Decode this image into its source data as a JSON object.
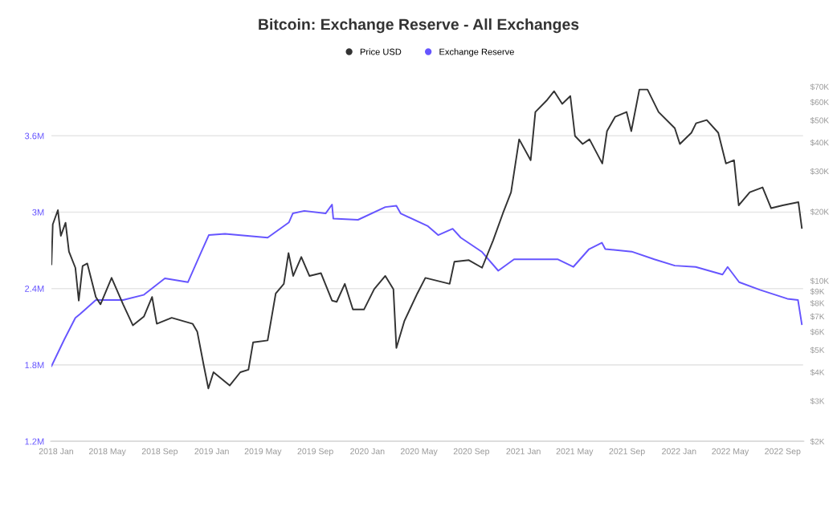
{
  "chart_data": {
    "type": "line",
    "title": "Bitcoin: Exchange Reserve - All Exchanges",
    "legend": "top",
    "grid": "y",
    "log": "y2",
    "line_style": "solid",
    "marker": "none",
    "xlim": [
      "2017-12-20",
      "2022-10-20"
    ],
    "xticks": [
      {
        "value": "2018-01-01",
        "label": "2018 Jan"
      },
      {
        "value": "2018-05-01",
        "label": "2018 May"
      },
      {
        "value": "2018-09-01",
        "label": "2018 Sep"
      },
      {
        "value": "2019-01-01",
        "label": "2019 Jan"
      },
      {
        "value": "2019-05-01",
        "label": "2019 May"
      },
      {
        "value": "2019-09-01",
        "label": "2019 Sep"
      },
      {
        "value": "2020-01-01",
        "label": "2020 Jan"
      },
      {
        "value": "2020-05-01",
        "label": "2020 May"
      },
      {
        "value": "2020-09-01",
        "label": "2020 Sep"
      },
      {
        "value": "2021-01-01",
        "label": "2021 Jan"
      },
      {
        "value": "2021-05-01",
        "label": "2021 May"
      },
      {
        "value": "2021-09-01",
        "label": "2021 Sep"
      },
      {
        "value": "2022-01-01",
        "label": "2022 Jan"
      },
      {
        "value": "2022-05-01",
        "label": "2022 May"
      },
      {
        "value": "2022-09-01",
        "label": "2022 Sep"
      }
    ],
    "ylim": [
      1200000,
      4100000
    ],
    "yticks": [
      {
        "value": 1200000,
        "label": "1.2M"
      },
      {
        "value": 1800000,
        "label": "1.8M"
      },
      {
        "value": 2400000,
        "label": "2.4M"
      },
      {
        "value": 3000000,
        "label": "3M"
      },
      {
        "value": 3600000,
        "label": "3.6M"
      }
    ],
    "y2lim": [
      2000,
      81000
    ],
    "y2ticks": [
      {
        "value": 2000,
        "label": "$2K"
      },
      {
        "value": 3000,
        "label": "$3K"
      },
      {
        "value": 4000,
        "label": "$4K"
      },
      {
        "value": 5000,
        "label": "$5K"
      },
      {
        "value": 6000,
        "label": "$6K"
      },
      {
        "value": 7000,
        "label": "$7K"
      },
      {
        "value": 8000,
        "label": "$8K"
      },
      {
        "value": 9000,
        "label": "$9K"
      },
      {
        "value": 10000,
        "label": "$10K"
      },
      {
        "value": 20000,
        "label": "$20K"
      },
      {
        "value": 30000,
        "label": "$30K"
      },
      {
        "value": 40000,
        "label": "$40K"
      },
      {
        "value": 50000,
        "label": "$50K"
      },
      {
        "value": 60000,
        "label": "$60K"
      },
      {
        "value": 70000,
        "label": "$70K"
      }
    ],
    "series": [
      {
        "name": "Price USD",
        "color": "#333333",
        "axis": "y2",
        "x": [
          "2017-12-21",
          "2017-12-24",
          "2018-01-05",
          "2018-01-12",
          "2018-01-23",
          "2018-01-31",
          "2018-02-15",
          "2018-02-23",
          "2018-03-04",
          "2018-03-15",
          "2018-04-04",
          "2018-04-15",
          "2018-05-11",
          "2018-06-07",
          "2018-06-30",
          "2018-07-26",
          "2018-08-14",
          "2018-08-25",
          "2018-09-29",
          "2018-11-17",
          "2018-11-28",
          "2018-12-13",
          "2018-12-24",
          "2019-01-05",
          "2019-02-12",
          "2019-03-09",
          "2019-03-28",
          "2019-04-08",
          "2019-05-12",
          "2019-05-31",
          "2019-06-19",
          "2019-06-30",
          "2019-07-11",
          "2019-07-30",
          "2019-08-18",
          "2019-09-14",
          "2019-10-10",
          "2019-10-21",
          "2019-11-09",
          "2019-11-28",
          "2019-12-24",
          "2020-01-17",
          "2020-02-12",
          "2020-03-02",
          "2020-03-09",
          "2020-03-28",
          "2020-04-27",
          "2020-05-16",
          "2020-07-12",
          "2020-07-23",
          "2020-08-26",
          "2020-09-26",
          "2020-10-22",
          "2020-11-14",
          "2020-12-03",
          "2020-12-22",
          "2021-01-18",
          "2021-01-29",
          "2021-02-24",
          "2021-03-14",
          "2021-04-02",
          "2021-04-21",
          "2021-05-02",
          "2021-05-20",
          "2021-06-05",
          "2021-07-05",
          "2021-07-16",
          "2021-08-04",
          "2021-08-31",
          "2021-09-11",
          "2021-09-30",
          "2021-10-19",
          "2021-11-14",
          "2021-12-22",
          "2022-01-03",
          "2022-01-30",
          "2022-02-10",
          "2022-03-07",
          "2022-04-03",
          "2022-04-21",
          "2022-05-10",
          "2022-05-21",
          "2022-06-16",
          "2022-07-16",
          "2022-08-05",
          "2022-09-01",
          "2022-10-08",
          "2022-10-16"
        ],
        "values": [
          11800,
          17600,
          20300,
          15700,
          17900,
          13400,
          11400,
          8200,
          11600,
          11900,
          8500,
          7900,
          10300,
          7900,
          6400,
          7000,
          8500,
          6500,
          6900,
          6500,
          6000,
          4300,
          3400,
          4000,
          3500,
          4000,
          4100,
          5400,
          5500,
          8800,
          9700,
          13200,
          10500,
          12700,
          10500,
          10800,
          8200,
          8100,
          9700,
          7500,
          7500,
          9200,
          10500,
          9200,
          5100,
          6700,
          8800,
          10300,
          9700,
          12100,
          12300,
          11400,
          15000,
          19700,
          24300,
          41300,
          33500,
          54300,
          60800,
          66900,
          58900,
          63700,
          42700,
          39400,
          41300,
          32400,
          44800,
          51700,
          54300,
          44800,
          68000,
          68000,
          54300,
          46200,
          39400,
          44100,
          48500,
          50100,
          44100,
          32400,
          33500,
          21300,
          24300,
          25500,
          20700,
          21300,
          22000,
          17000
        ]
      },
      {
        "name": "Exchange Reserve",
        "color": "#6655ff",
        "axis": "y",
        "x": [
          "2017-12-21",
          "2018-01-20",
          "2018-02-15",
          "2018-02-26",
          "2018-04-04",
          "2018-06-07",
          "2018-07-25",
          "2018-09-13",
          "2018-11-06",
          "2018-12-05",
          "2018-12-25",
          "2019-02-01",
          "2019-05-12",
          "2019-07-01",
          "2019-07-10",
          "2019-08-06",
          "2019-09-25",
          "2019-10-10",
          "2019-10-13",
          "2019-12-10",
          "2020-02-12",
          "2020-03-09",
          "2020-03-19",
          "2020-05-22",
          "2020-06-15",
          "2020-07-19",
          "2020-08-07",
          "2020-09-25",
          "2020-11-03",
          "2020-12-10",
          "2021-01-28",
          "2021-03-22",
          "2021-04-28",
          "2021-06-04",
          "2021-07-04",
          "2021-07-12",
          "2021-09-12",
          "2021-11-04",
          "2021-12-22",
          "2022-02-09",
          "2022-04-13",
          "2022-04-25",
          "2022-05-22",
          "2022-07-10",
          "2022-09-12",
          "2022-10-07",
          "2022-10-16"
        ],
        "values": [
          1790000,
          2000000,
          2170000,
          2200000,
          2310000,
          2310000,
          2350000,
          2480000,
          2450000,
          2670000,
          2820000,
          2830000,
          2800000,
          2920000,
          2990000,
          3010000,
          2990000,
          3060000,
          2950000,
          2940000,
          3040000,
          3050000,
          2990000,
          2890000,
          2820000,
          2870000,
          2800000,
          2690000,
          2540000,
          2630000,
          2630000,
          2630000,
          2570000,
          2710000,
          2760000,
          2710000,
          2690000,
          2630000,
          2580000,
          2570000,
          2510000,
          2570000,
          2450000,
          2390000,
          2320000,
          2310000,
          2120000
        ]
      }
    ]
  }
}
